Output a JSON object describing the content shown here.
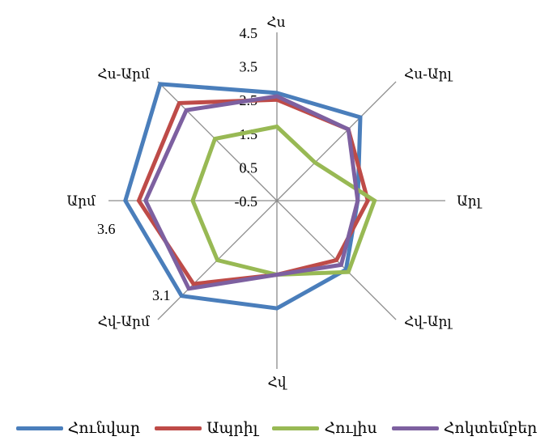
{
  "chart_data": {
    "type": "radar",
    "axes": [
      "Հս",
      "Հս-Արլ",
      "Արլ",
      "Հվ-Արլ",
      "Հվ",
      "Հվ-Արմ",
      "Արմ",
      "Հս-Արմ"
    ],
    "r_ticks": [
      "-0.5",
      "0.5",
      "1.5",
      "2.5",
      "3.5",
      "4.5"
    ],
    "r_range": [
      -0.5,
      4.5
    ],
    "grid": "spokes only",
    "legend_position": "bottom",
    "annotations": [
      "3.6",
      "3.1"
    ],
    "series": [
      {
        "name": "Հունվար",
        "color": "#4a7ebb",
        "values": [
          2.7,
          3.0,
          1.9,
          2.4,
          2.7,
          3.5,
          4.0,
          4.4
        ]
      },
      {
        "name": "Ապրիլ",
        "color": "#be4b48",
        "values": [
          2.5,
          2.5,
          2.2,
          2.0,
          1.7,
          3.0,
          3.6,
          3.6
        ]
      },
      {
        "name": "Հուլիս",
        "color": "#98b954",
        "values": [
          1.7,
          1.1,
          2.4,
          2.5,
          1.7,
          2.0,
          2.0,
          2.1
        ]
      },
      {
        "name": "Հոկտեմբեր",
        "color": "#7d60a0",
        "values": [
          2.6,
          2.5,
          1.9,
          2.2,
          1.7,
          3.2,
          3.4,
          3.3
        ]
      }
    ]
  }
}
